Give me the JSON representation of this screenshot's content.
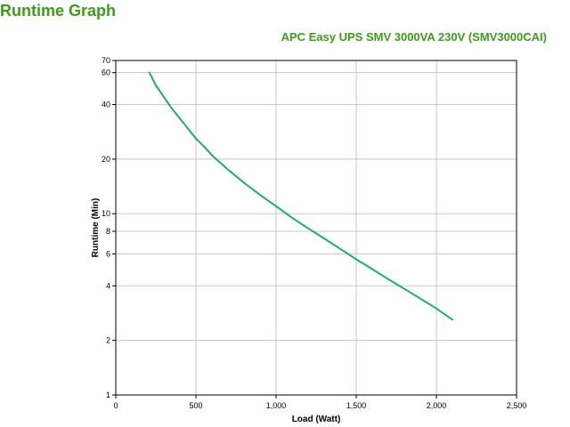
{
  "page": {
    "heading": "Runtime Graph"
  },
  "colors": {
    "heading": "#3d9b1c",
    "series": "#1fae62",
    "grid": "#c8c8c8",
    "axis": "#000000"
  },
  "chart_data": {
    "type": "line",
    "title": "APC Easy UPS SMV 3000VA 230V (SMV3000CAI)",
    "xlabel": "Load (Watt)",
    "ylabel": "Runtime (Min)",
    "xlim": [
      0,
      2500
    ],
    "ylim": [
      1,
      70
    ],
    "yscale": "log",
    "grid": true,
    "legend": "none",
    "x_ticks": [
      0,
      500,
      1000,
      1500,
      2000,
      2500
    ],
    "x_tick_labels": [
      "0",
      "500",
      "1,000",
      "1,500",
      "2,000",
      "2,500"
    ],
    "y_ticks": [
      1,
      2,
      4,
      6,
      8,
      10,
      20,
      40,
      60,
      70
    ],
    "y_tick_labels": [
      "1",
      "2",
      "4",
      "6",
      "8",
      "10",
      "20",
      "40",
      "60",
      "70"
    ],
    "series": [
      {
        "x": [
          210,
          250,
          300,
          350,
          400,
          450,
          500,
          550,
          600,
          700,
          800,
          900,
          1000,
          1100,
          1200,
          1300,
          1400,
          1500,
          1600,
          1700,
          1800,
          1900,
          2000,
          2100
        ],
        "y": [
          60,
          51,
          44,
          38,
          33.5,
          29.5,
          26,
          23.5,
          21,
          17.5,
          14.8,
          12.7,
          11,
          9.5,
          8.3,
          7.3,
          6.4,
          5.6,
          4.95,
          4.35,
          3.85,
          3.4,
          3.0,
          2.6
        ]
      }
    ]
  }
}
